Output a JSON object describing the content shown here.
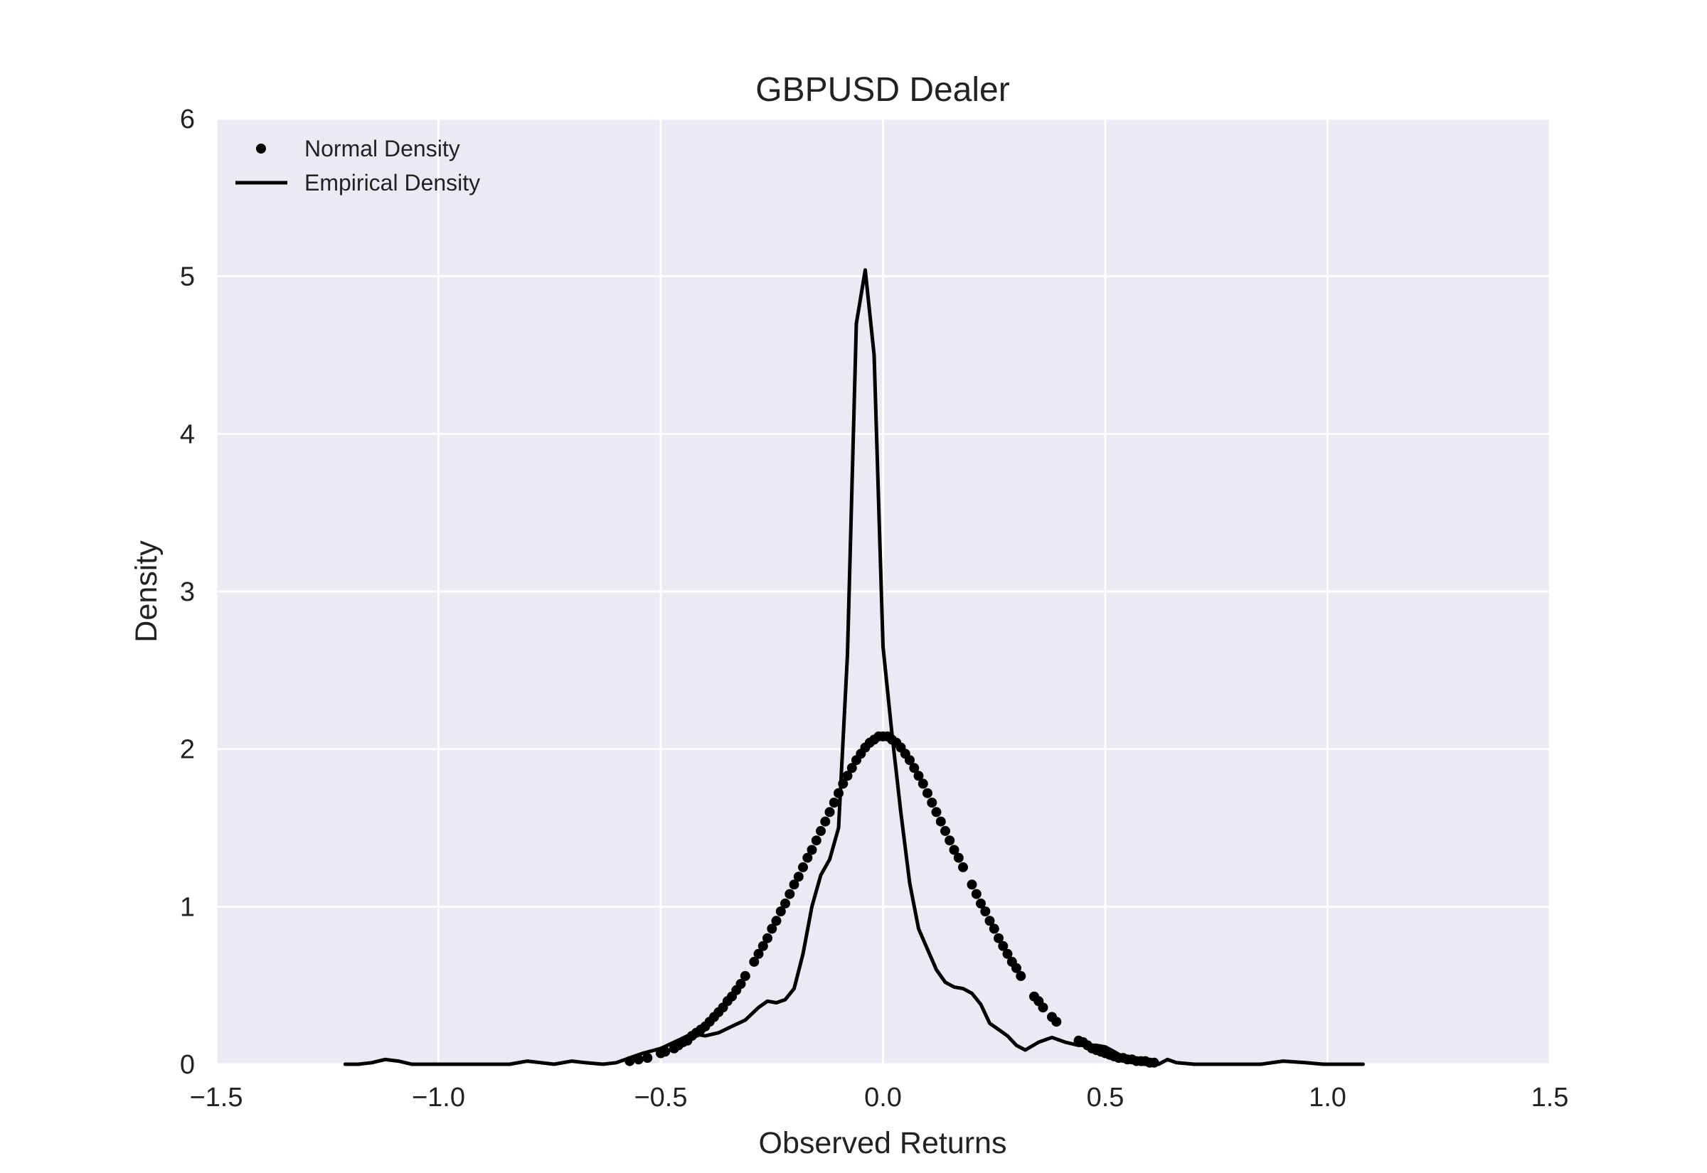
{
  "chart_data": {
    "type": "line",
    "title": "GBPUSD Dealer",
    "xlabel": "Observed Returns",
    "ylabel": "Density",
    "xlim": [
      -1.5,
      1.5
    ],
    "ylim": [
      0,
      6
    ],
    "x_ticks": [
      -1.5,
      -1.0,
      -0.5,
      0.0,
      0.5,
      1.0,
      1.5
    ],
    "x_tick_labels": [
      "−1.5",
      "−1.0",
      "−0.5",
      "0.0",
      "0.5",
      "1.0",
      "1.5"
    ],
    "y_ticks": [
      0,
      1,
      2,
      3,
      4,
      5,
      6
    ],
    "y_tick_labels": [
      "0",
      "1",
      "2",
      "3",
      "4",
      "5",
      "6"
    ],
    "grid": true,
    "legend_position": "top-left",
    "colors": {
      "plot_background": "#eaeaf2",
      "grid": "#ffffff",
      "series": "#000000"
    },
    "series": [
      {
        "name": "Normal Density",
        "style": "markers",
        "normal_params": {
          "mean": 0.0,
          "std": 0.192
        },
        "x": [
          -0.57,
          -0.55,
          -0.53,
          -0.5,
          -0.49,
          -0.47,
          -0.46,
          -0.45,
          -0.44,
          -0.43,
          -0.42,
          -0.41,
          -0.4,
          -0.39,
          -0.38,
          -0.37,
          -0.36,
          -0.35,
          -0.34,
          -0.33,
          -0.32,
          -0.31,
          -0.29,
          -0.28,
          -0.27,
          -0.26,
          -0.25,
          -0.24,
          -0.23,
          -0.22,
          -0.21,
          -0.2,
          -0.19,
          -0.18,
          -0.17,
          -0.16,
          -0.15,
          -0.14,
          -0.13,
          -0.12,
          -0.11,
          -0.1,
          -0.09,
          -0.08,
          -0.07,
          -0.06,
          -0.05,
          -0.04,
          -0.03,
          -0.02,
          -0.01,
          0.0,
          0.01,
          0.02,
          0.03,
          0.04,
          0.05,
          0.06,
          0.07,
          0.08,
          0.09,
          0.1,
          0.11,
          0.12,
          0.13,
          0.14,
          0.15,
          0.16,
          0.17,
          0.18,
          0.2,
          0.21,
          0.22,
          0.23,
          0.24,
          0.25,
          0.26,
          0.27,
          0.28,
          0.29,
          0.3,
          0.31,
          0.34,
          0.35,
          0.36,
          0.38,
          0.39,
          0.44,
          0.45,
          0.46,
          0.47,
          0.48,
          0.49,
          0.5,
          0.51,
          0.52,
          0.53,
          0.54,
          0.55,
          0.56,
          0.57,
          0.58,
          0.59,
          0.6,
          0.61
        ],
        "y": [
          0.02,
          0.03,
          0.04,
          0.07,
          0.08,
          0.1,
          0.12,
          0.14,
          0.15,
          0.18,
          0.2,
          0.22,
          0.24,
          0.27,
          0.3,
          0.33,
          0.36,
          0.4,
          0.43,
          0.47,
          0.51,
          0.56,
          0.65,
          0.7,
          0.75,
          0.8,
          0.86,
          0.91,
          0.97,
          1.02,
          1.08,
          1.14,
          1.19,
          1.25,
          1.31,
          1.36,
          1.42,
          1.48,
          1.54,
          1.6,
          1.66,
          1.72,
          1.78,
          1.83,
          1.88,
          1.93,
          1.97,
          2.01,
          2.04,
          2.06,
          2.08,
          2.08,
          2.08,
          2.06,
          2.04,
          2.01,
          1.97,
          1.93,
          1.88,
          1.83,
          1.78,
          1.72,
          1.66,
          1.6,
          1.54,
          1.48,
          1.42,
          1.36,
          1.31,
          1.25,
          1.14,
          1.08,
          1.02,
          0.97,
          0.91,
          0.86,
          0.8,
          0.75,
          0.7,
          0.65,
          0.61,
          0.56,
          0.43,
          0.4,
          0.36,
          0.3,
          0.27,
          0.15,
          0.14,
          0.12,
          0.1,
          0.09,
          0.08,
          0.07,
          0.06,
          0.05,
          0.04,
          0.04,
          0.03,
          0.03,
          0.02,
          0.02,
          0.02,
          0.01,
          0.01
        ]
      },
      {
        "name": "Empirical Density",
        "style": "line",
        "x": [
          -1.21,
          -1.18,
          -1.15,
          -1.12,
          -1.09,
          -1.06,
          -1.0,
          -0.9,
          -0.84,
          -0.8,
          -0.77,
          -0.74,
          -0.7,
          -0.67,
          -0.63,
          -0.6,
          -0.57,
          -0.54,
          -0.5,
          -0.47,
          -0.44,
          -0.42,
          -0.4,
          -0.37,
          -0.34,
          -0.31,
          -0.28,
          -0.26,
          -0.24,
          -0.22,
          -0.2,
          -0.18,
          -0.16,
          -0.14,
          -0.12,
          -0.1,
          -0.08,
          -0.06,
          -0.04,
          -0.02,
          0.0,
          0.02,
          0.04,
          0.06,
          0.08,
          0.1,
          0.12,
          0.14,
          0.16,
          0.18,
          0.2,
          0.22,
          0.24,
          0.26,
          0.28,
          0.3,
          0.32,
          0.35,
          0.38,
          0.41,
          0.44,
          0.46,
          0.48,
          0.5,
          0.52,
          0.55,
          0.58,
          0.6,
          0.62,
          0.64,
          0.66,
          0.7,
          0.75,
          0.8,
          0.85,
          0.9,
          0.95,
          0.99,
          1.03,
          1.08
        ],
        "y": [
          0.0,
          0.0,
          0.01,
          0.03,
          0.02,
          0.0,
          0.0,
          0.0,
          0.0,
          0.02,
          0.01,
          0.0,
          0.02,
          0.01,
          0.0,
          0.01,
          0.04,
          0.07,
          0.1,
          0.14,
          0.18,
          0.19,
          0.18,
          0.2,
          0.24,
          0.28,
          0.36,
          0.4,
          0.39,
          0.41,
          0.48,
          0.7,
          1.0,
          1.2,
          1.3,
          1.5,
          2.6,
          4.7,
          5.04,
          4.5,
          2.65,
          2.1,
          1.6,
          1.15,
          0.86,
          0.73,
          0.6,
          0.52,
          0.49,
          0.48,
          0.45,
          0.38,
          0.26,
          0.22,
          0.18,
          0.12,
          0.09,
          0.14,
          0.17,
          0.14,
          0.12,
          0.12,
          0.12,
          0.11,
          0.08,
          0.03,
          0.0,
          0.0,
          0.0,
          0.03,
          0.01,
          0.0,
          0.0,
          0.0,
          0.0,
          0.02,
          0.01,
          0.0,
          0.0,
          0.0
        ]
      }
    ]
  }
}
